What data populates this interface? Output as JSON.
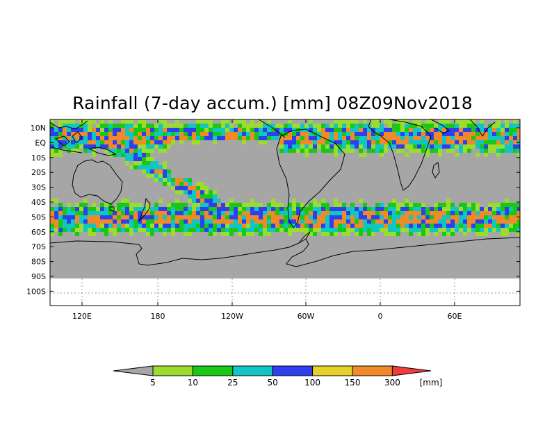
{
  "title": "Rainfall (7-day accum.) [mm] 08Z09Nov2018",
  "lat_ticks": [
    "10N",
    "EQ",
    "10S",
    "20S",
    "30S",
    "40S",
    "50S",
    "60S",
    "70S",
    "80S",
    "90S",
    "100S"
  ],
  "lon_ticks": [
    "120E",
    "180",
    "120W",
    "60W",
    "0",
    "60E"
  ],
  "colorbar": {
    "unit": "[mm]",
    "labels": [
      "5",
      "10",
      "25",
      "50",
      "100",
      "150",
      "300"
    ],
    "colors": [
      "#a6a6a6",
      "#9bdc2f",
      "#19c814",
      "#10c6c2",
      "#2f3ff0",
      "#e6d22b",
      "#f08a28",
      "#f03c3c"
    ]
  },
  "colors": {
    "no_rain": "#a6a6a6",
    "coastline": "#000000"
  }
}
